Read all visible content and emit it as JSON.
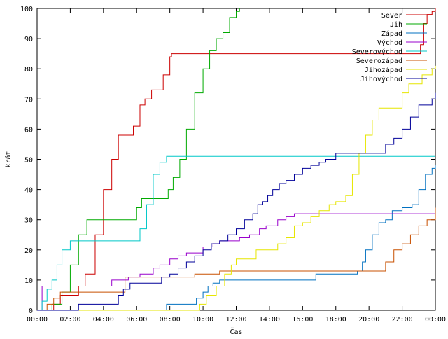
{
  "chart_data": {
    "type": "line",
    "xlabel": "Čas",
    "ylabel": "krát",
    "xlim": [
      0,
      24
    ],
    "ylim": [
      0,
      100
    ],
    "grid": false,
    "legend_position": "top-right",
    "x_ticks": [
      "00:00",
      "02:00",
      "04:00",
      "06:00",
      "08:00",
      "10:00",
      "12:00",
      "14:00",
      "16:00",
      "18:00",
      "20:00",
      "22:00",
      "00:00"
    ],
    "y_ticks": [
      "0",
      "10",
      "20",
      "30",
      "40",
      "50",
      "60",
      "70",
      "80",
      "90",
      "100"
    ],
    "series": [
      {
        "name": "Sever",
        "color": "#cc0000",
        "x": [
          0,
          0.8,
          1.0,
          1.4,
          2.5,
          2.9,
          3.5,
          4.0,
          4.5,
          4.9,
          5.3,
          5.8,
          6.2,
          6.5,
          6.9,
          7.3,
          7.6,
          8.0,
          8.1,
          23.0,
          23.1,
          23.3,
          23.5,
          23.8,
          24.0
        ],
        "y": [
          0,
          0,
          2,
          5,
          8,
          12,
          25,
          40,
          50,
          58,
          58,
          61,
          68,
          70,
          73,
          73,
          78,
          84,
          85,
          85,
          88,
          95,
          98,
          99,
          100
        ]
      },
      {
        "name": "Jih",
        "color": "#00aa00",
        "x": [
          0,
          0.9,
          1.5,
          2.0,
          2.5,
          3.0,
          5.5,
          5.8,
          6.0,
          6.3,
          7.5,
          7.9,
          8.2,
          8.6,
          9.0,
          9.5,
          10.0,
          10.4,
          10.8,
          11.2,
          11.6,
          12.0,
          12.2
        ],
        "y": [
          0,
          2,
          6,
          15,
          25,
          30,
          30,
          30,
          34,
          37,
          37,
          40,
          44,
          50,
          60,
          72,
          80,
          86,
          90,
          92,
          97,
          99,
          100
        ]
      },
      {
        "name": "Západ",
        "color": "#0070c0",
        "x": [
          0,
          7.6,
          7.8,
          9.4,
          9.6,
          10.0,
          10.3,
          10.6,
          11.0,
          16.5,
          16.8,
          19.0,
          19.3,
          19.6,
          19.8,
          20.2,
          20.6,
          21.0,
          21.4,
          22.0,
          22.6,
          23.0,
          23.4,
          23.8,
          24.0
        ],
        "y": [
          0,
          0,
          2,
          2,
          4,
          6,
          8,
          9,
          10,
          10,
          12,
          12,
          13,
          16,
          20,
          25,
          29,
          30,
          33,
          34,
          35,
          40,
          45,
          47,
          48
        ]
      },
      {
        "name": "Východ",
        "color": "#9900cc",
        "x": [
          0,
          0.3,
          1.0,
          4.5,
          4.8,
          5.5,
          6.2,
          7.0,
          7.4,
          8.0,
          8.5,
          9.0,
          10.0,
          10.6,
          11.0,
          12.2,
          12.8,
          13.4,
          13.8,
          14.5,
          15.0,
          15.5,
          15.8,
          16.0,
          24.0
        ],
        "y": [
          0,
          8,
          8,
          10,
          10,
          11,
          12,
          14,
          15,
          17,
          18,
          19,
          21,
          22,
          23,
          24,
          25,
          27,
          28,
          30,
          31,
          32,
          32,
          32,
          32
        ]
      },
      {
        "name": "Severovýchod",
        "color": "#00c8c8",
        "x": [
          0,
          0.3,
          0.6,
          0.9,
          1.2,
          1.5,
          2.0,
          3.0,
          4.0,
          5.0,
          6.0,
          6.2,
          6.6,
          7.0,
          7.4,
          7.8,
          24.0
        ],
        "y": [
          0,
          3,
          7,
          10,
          15,
          20,
          23,
          23,
          23,
          23,
          23,
          27,
          35,
          45,
          49,
          51,
          51
        ]
      },
      {
        "name": "Severozápad",
        "color": "#c85000",
        "x": [
          0,
          0.6,
          1.0,
          1.4,
          2.0,
          5.0,
          5.3,
          6.0,
          9.0,
          9.5,
          10.3,
          11.0,
          20.0,
          20.5,
          21.0,
          21.5,
          22.0,
          22.5,
          23.0,
          23.5,
          24.0
        ],
        "y": [
          0,
          2,
          4,
          6,
          6,
          6,
          11,
          11,
          11,
          12,
          12,
          13,
          13,
          13,
          16,
          20,
          22,
          25,
          28,
          30,
          34
        ]
      },
      {
        "name": "Jihozápad",
        "color": "#e6e600",
        "x": [
          0,
          9.5,
          9.8,
          10.2,
          10.8,
          11.3,
          11.7,
          12.0,
          12.6,
          13.2,
          13.8,
          14.5,
          15.0,
          15.5,
          16.0,
          16.5,
          17.0,
          17.6,
          18.0,
          18.6,
          19.0,
          19.4,
          19.8,
          20.2,
          20.6,
          21.0,
          21.6,
          22.0,
          22.4,
          22.8,
          23.2,
          23.8,
          24.0
        ],
        "y": [
          0,
          0,
          2,
          5,
          8,
          12,
          15,
          17,
          17,
          20,
          20,
          22,
          24,
          28,
          29,
          31,
          33,
          35,
          36,
          38,
          45,
          52,
          58,
          63,
          67,
          67,
          67,
          72,
          75,
          75,
          78,
          80,
          81
        ]
      },
      {
        "name": "Jihovýchod",
        "color": "#000099",
        "x": [
          0,
          1.5,
          2.5,
          3.5,
          4.5,
          4.9,
          5.2,
          5.6,
          6.0,
          6.5,
          7.0,
          7.5,
          8.0,
          8.5,
          9.0,
          9.5,
          10.0,
          10.5,
          11.0,
          11.5,
          12.0,
          12.5,
          12.8,
          13.0,
          13.3,
          13.6,
          13.9,
          14.2,
          14.6,
          15.0,
          15.5,
          16.0,
          16.5,
          17.0,
          17.4,
          18.0,
          18.6,
          19.0,
          19.5,
          20.0,
          20.5,
          21.0,
          21.5,
          22.0,
          22.5,
          23.0,
          23.4,
          23.8,
          24.0
        ],
        "y": [
          0,
          0,
          2,
          2,
          2,
          5,
          7,
          9,
          9,
          9,
          9,
          11,
          12,
          14,
          16,
          18,
          20,
          22,
          23,
          25,
          27,
          30,
          30,
          32,
          35,
          36,
          38,
          40,
          42,
          43,
          45,
          47,
          48,
          49,
          50,
          52,
          52,
          52,
          52,
          52,
          52,
          55,
          57,
          60,
          64,
          68,
          68,
          70,
          72
        ]
      }
    ]
  }
}
